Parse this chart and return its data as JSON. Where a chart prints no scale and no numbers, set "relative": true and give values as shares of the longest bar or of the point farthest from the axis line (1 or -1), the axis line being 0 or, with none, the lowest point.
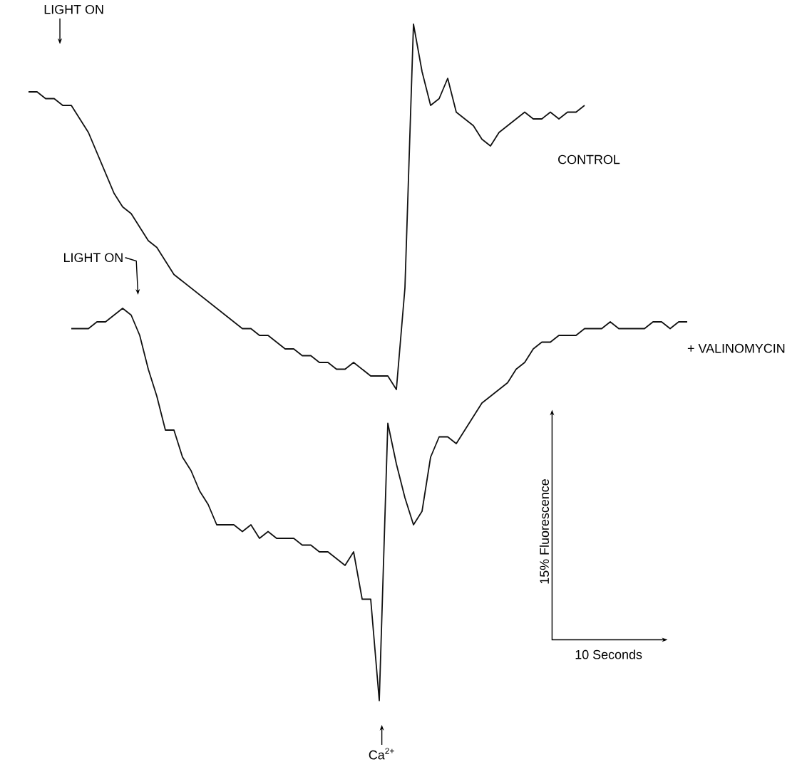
{
  "chart_data": {
    "type": "line",
    "relative": true,
    "tick_labels": false,
    "marker": "none",
    "line_style": "solid",
    "categories": [
      null,
      null,
      null,
      null,
      null,
      null,
      null,
      null,
      null,
      null,
      null,
      null,
      null,
      null,
      null,
      null,
      null,
      null,
      null,
      null,
      null,
      null,
      null,
      null,
      null,
      null,
      null,
      null,
      null,
      null,
      null,
      null,
      null,
      null,
      null,
      null,
      null,
      null,
      null,
      null,
      null,
      null,
      null,
      null,
      null,
      null,
      null,
      null,
      null,
      null,
      null,
      null,
      null,
      null,
      null,
      null,
      null,
      null,
      null,
      null,
      null,
      null,
      null,
      null,
      null,
      null,
      null,
      null,
      null,
      null,
      null,
      null,
      null,
      null,
      null,
      null,
      null,
      null
    ],
    "series": [
      {
        "name": "CONTROL",
        "color": "#111111",
        "values": [
          0.9,
          0.9,
          0.89,
          0.89,
          0.88,
          0.88,
          0.86,
          0.84,
          0.81,
          0.78,
          0.75,
          0.73,
          0.72,
          0.7,
          0.68,
          0.67,
          0.65,
          0.63,
          0.62,
          0.61,
          0.6,
          0.59,
          0.58,
          0.57,
          0.56,
          0.55,
          0.55,
          0.54,
          0.54,
          0.53,
          0.52,
          0.52,
          0.51,
          0.51,
          0.5,
          0.5,
          0.49,
          0.49,
          0.5,
          0.49,
          0.48,
          0.48,
          0.48,
          0.46,
          0.61,
          1.0,
          0.93,
          0.88,
          0.89,
          0.92,
          0.87,
          0.86,
          0.85,
          0.83,
          0.82,
          0.84,
          0.85,
          0.86,
          0.87,
          0.86,
          0.86,
          0.87,
          0.86,
          0.87,
          0.87,
          0.88,
          null,
          null,
          null,
          null,
          null,
          null,
          null,
          null,
          null,
          null,
          null,
          null
        ]
      },
      {
        "name": "+ VALINOMYCIN",
        "color": "#111111",
        "values": [
          null,
          null,
          null,
          null,
          null,
          0.55,
          0.55,
          0.55,
          0.56,
          0.56,
          0.57,
          0.58,
          0.57,
          0.54,
          0.49,
          0.45,
          0.4,
          0.4,
          0.36,
          0.34,
          0.31,
          0.29,
          0.26,
          0.26,
          0.26,
          0.25,
          0.26,
          0.24,
          0.25,
          0.24,
          0.24,
          0.24,
          0.23,
          0.23,
          0.22,
          0.22,
          0.21,
          0.2,
          0.22,
          0.15,
          0.15,
          0.0,
          0.41,
          0.35,
          0.3,
          0.26,
          0.28,
          0.36,
          0.39,
          0.39,
          0.38,
          0.4,
          0.42,
          0.44,
          0.45,
          0.46,
          0.47,
          0.49,
          0.5,
          0.52,
          0.53,
          0.53,
          0.54,
          0.54,
          0.54,
          0.55,
          0.55,
          0.55,
          0.56,
          0.55,
          0.55,
          0.55,
          0.55,
          0.56,
          0.56,
          0.55,
          0.56,
          0.56
        ]
      }
    ],
    "annotations": [
      "LIGHT ON",
      "LIGHT ON",
      "Ca$^{2+}$",
      "15% Fluorescence",
      "10 Seconds"
    ]
  }
}
